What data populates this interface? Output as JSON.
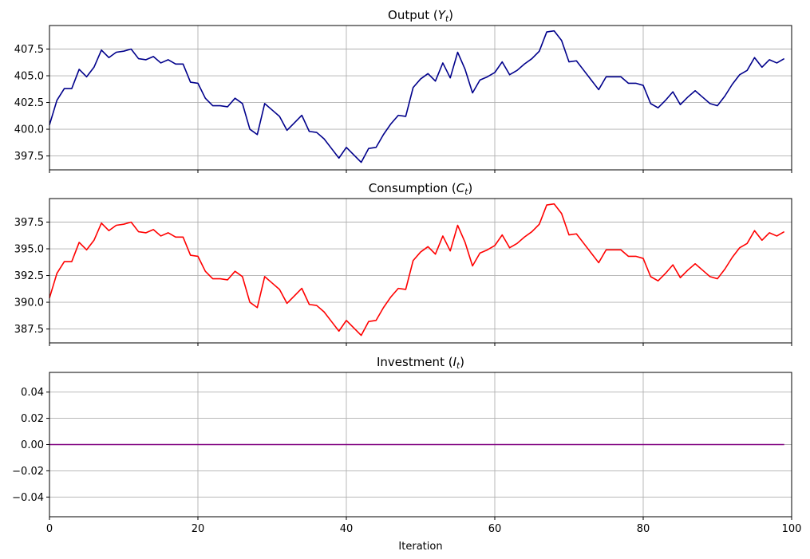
{
  "chart_data": [
    {
      "type": "line",
      "title": "Output (Y_t)",
      "title_text": "Output (",
      "title_sym": "Y",
      "title_sub": "t",
      "title_end": ")",
      "xlim": [
        0,
        100
      ],
      "ylim": [
        396.2,
        409.7
      ],
      "yticks": [
        397.5,
        400.0,
        402.5,
        405.0,
        407.5
      ],
      "ytick_labels": [
        "397.5",
        "400.0",
        "402.5",
        "405.0",
        "407.5"
      ],
      "xticks": [
        0,
        20,
        40,
        60,
        80,
        100
      ],
      "xtick_labels": [],
      "grid": true,
      "color": "#00008b",
      "x": [
        0,
        1,
        2,
        3,
        4,
        5,
        6,
        7,
        8,
        9,
        10,
        11,
        12,
        13,
        14,
        15,
        16,
        17,
        18,
        19,
        20,
        21,
        22,
        23,
        24,
        25,
        26,
        27,
        28,
        29,
        30,
        31,
        32,
        33,
        34,
        35,
        36,
        37,
        38,
        39,
        40,
        41,
        42,
        43,
        44,
        45,
        46,
        47,
        48,
        49,
        50,
        51,
        52,
        53,
        54,
        55,
        56,
        57,
        58,
        59,
        60,
        61,
        62,
        63,
        64,
        65,
        66,
        67,
        68,
        69,
        70,
        71,
        72,
        73,
        74,
        75,
        76,
        77,
        78,
        79,
        80,
        81,
        82,
        83,
        84,
        85,
        86,
        87,
        88,
        89,
        90,
        91,
        92,
        93,
        94,
        95,
        96,
        97,
        98,
        99
      ],
      "y": [
        400.4,
        402.7,
        403.8,
        403.8,
        405.6,
        404.9,
        405.8,
        407.4,
        406.7,
        407.2,
        407.3,
        407.5,
        406.6,
        406.5,
        406.8,
        406.2,
        406.5,
        406.1,
        406.1,
        404.4,
        404.3,
        402.9,
        402.2,
        402.2,
        402.1,
        402.9,
        402.4,
        400.0,
        399.5,
        402.4,
        401.8,
        401.2,
        399.9,
        400.6,
        401.3,
        399.8,
        399.7,
        399.1,
        398.2,
        397.3,
        398.3,
        397.6,
        396.9,
        398.2,
        398.3,
        399.5,
        400.5,
        401.3,
        401.2,
        403.9,
        404.7,
        405.2,
        404.5,
        406.2,
        404.8,
        407.2,
        405.6,
        403.4,
        404.6,
        404.9,
        405.3,
        406.3,
        405.1,
        405.5,
        406.1,
        406.6,
        407.3,
        409.1,
        409.2,
        408.3,
        406.3,
        406.4,
        405.5,
        404.6,
        403.7,
        404.9,
        404.9,
        404.9,
        404.3,
        404.3,
        404.1,
        402.4,
        402.0,
        402.7,
        403.5,
        402.3,
        403.0,
        403.6,
        403.0,
        402.4,
        402.2,
        403.1,
        404.2,
        405.1,
        405.5,
        406.7,
        405.8,
        406.5,
        406.2,
        406.6
      ]
    },
    {
      "type": "line",
      "title": "Consumption (C_t)",
      "title_text": "Consumption (",
      "title_sym": "C",
      "title_sub": "t",
      "title_end": ")",
      "xlim": [
        0,
        100
      ],
      "ylim": [
        386.2,
        399.7
      ],
      "yticks": [
        387.5,
        390.0,
        392.5,
        395.0,
        397.5
      ],
      "ytick_labels": [
        "387.5",
        "390.0",
        "392.5",
        "395.0",
        "397.5"
      ],
      "xticks": [
        0,
        20,
        40,
        60,
        80,
        100
      ],
      "xtick_labels": [],
      "grid": true,
      "color": "#ff0000",
      "x": [
        0,
        1,
        2,
        3,
        4,
        5,
        6,
        7,
        8,
        9,
        10,
        11,
        12,
        13,
        14,
        15,
        16,
        17,
        18,
        19,
        20,
        21,
        22,
        23,
        24,
        25,
        26,
        27,
        28,
        29,
        30,
        31,
        32,
        33,
        34,
        35,
        36,
        37,
        38,
        39,
        40,
        41,
        42,
        43,
        44,
        45,
        46,
        47,
        48,
        49,
        50,
        51,
        52,
        53,
        54,
        55,
        56,
        57,
        58,
        59,
        60,
        61,
        62,
        63,
        64,
        65,
        66,
        67,
        68,
        69,
        70,
        71,
        72,
        73,
        74,
        75,
        76,
        77,
        78,
        79,
        80,
        81,
        82,
        83,
        84,
        85,
        86,
        87,
        88,
        89,
        90,
        91,
        92,
        93,
        94,
        95,
        96,
        97,
        98,
        99
      ],
      "y": [
        390.4,
        392.7,
        393.8,
        393.8,
        395.6,
        394.9,
        395.8,
        397.4,
        396.7,
        397.2,
        397.3,
        397.5,
        396.6,
        396.5,
        396.8,
        396.2,
        396.5,
        396.1,
        396.1,
        394.4,
        394.3,
        392.9,
        392.2,
        392.2,
        392.1,
        392.9,
        392.4,
        390.0,
        389.5,
        392.4,
        391.8,
        391.2,
        389.9,
        390.6,
        391.3,
        389.8,
        389.7,
        389.1,
        388.2,
        387.3,
        388.3,
        387.6,
        386.9,
        388.2,
        388.3,
        389.5,
        390.5,
        391.3,
        391.2,
        393.9,
        394.7,
        395.2,
        394.5,
        396.2,
        394.8,
        397.2,
        395.6,
        393.4,
        394.6,
        394.9,
        395.3,
        396.3,
        395.1,
        395.5,
        396.1,
        396.6,
        397.3,
        399.1,
        399.2,
        398.3,
        396.3,
        396.4,
        395.5,
        394.6,
        393.7,
        394.9,
        394.9,
        394.9,
        394.3,
        394.3,
        394.1,
        392.4,
        392.0,
        392.7,
        393.5,
        392.3,
        393.0,
        393.6,
        393.0,
        392.4,
        392.2,
        393.1,
        394.2,
        395.1,
        395.5,
        396.7,
        395.8,
        396.5,
        396.2,
        396.6
      ]
    },
    {
      "type": "line",
      "title": "Investment (I_t)",
      "title_text": "Investment (",
      "title_sym": "I",
      "title_sub": "t",
      "title_end": ")",
      "xlim": [
        0,
        100
      ],
      "ylim": [
        -0.055,
        0.055
      ],
      "yticks": [
        -0.04,
        -0.02,
        0.0,
        0.02,
        0.04
      ],
      "ytick_labels": [
        "−0.04",
        "−0.02",
        "0.00",
        "0.02",
        "0.04"
      ],
      "xticks": [
        0,
        20,
        40,
        60,
        80,
        100
      ],
      "xtick_labels": [
        "0",
        "20",
        "40",
        "60",
        "80",
        "100"
      ],
      "xlabel": "Iteration",
      "grid": true,
      "color": "#800080",
      "x": [
        0,
        99
      ],
      "y": [
        0,
        0
      ]
    }
  ]
}
